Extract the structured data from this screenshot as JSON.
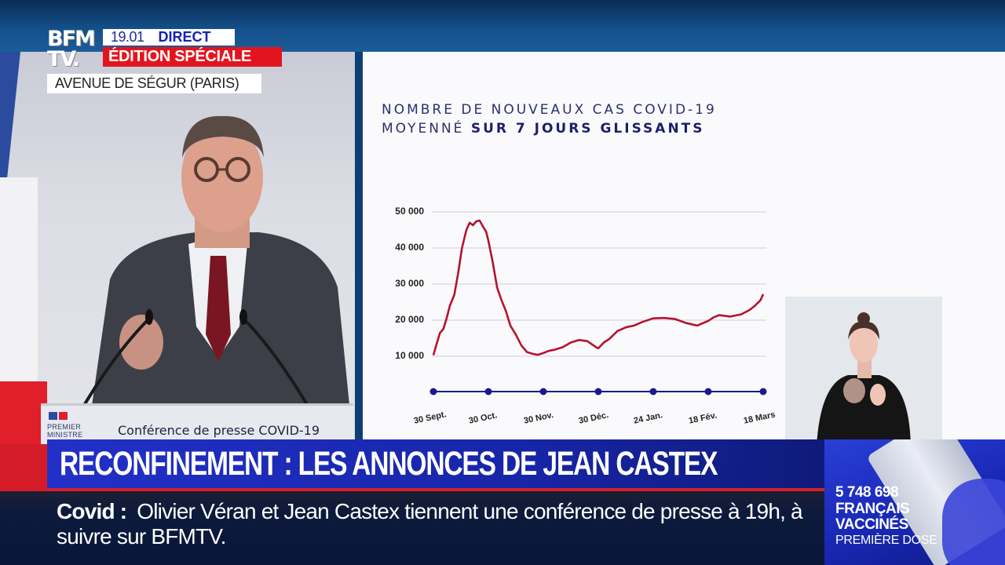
{
  "broadcast": {
    "channel_logo": [
      "BFM",
      "TV."
    ],
    "time": "19.01",
    "live_label": "DIRECT",
    "edition": "ÉDITION SPÉCIALE",
    "location": "AVENUE DE SÉGUR (PARIS)"
  },
  "podium": {
    "gov_label_line1": "PREMIER",
    "gov_label_line2": "MINISTRE",
    "title": "Conférence de presse COVID-19"
  },
  "chart": {
    "title_line1": "NOMBRE DE NOUVEAUX CAS COVID-19",
    "title_line2_plain": "MOYENNÉ ",
    "title_line2_bold": "SUR 7 JOURS GLISSANTS"
  },
  "chart_data": {
    "type": "line",
    "title": "Nombre de nouveaux cas COVID-19 moyenné sur 7 jours glissants",
    "xlabel": "",
    "ylabel": "",
    "ylim": [
      10000,
      50000
    ],
    "yticks": [
      "10 000",
      "20 000",
      "30 000",
      "40 000",
      "50 000"
    ],
    "ytick_values": [
      10000,
      20000,
      30000,
      40000,
      50000
    ],
    "grid": true,
    "categories": [
      "30 Sept.",
      "30 Oct.",
      "30 Nov.",
      "30 Déc.",
      "24 Jan.",
      "18 Fév.",
      "18 Mars"
    ],
    "series": [
      {
        "name": "Nouveaux cas (moyenne 7 jours)",
        "color": "#b5122f",
        "x": [
          0,
          0.06,
          0.12,
          0.18,
          0.24,
          0.3,
          0.38,
          0.45,
          0.52,
          0.6,
          0.66,
          0.72,
          0.78,
          0.84,
          0.9,
          0.96,
          1.0,
          1.08,
          1.16,
          1.24,
          1.32,
          1.4,
          1.5,
          1.6,
          1.7,
          1.8,
          1.9,
          2.0,
          2.1,
          2.2,
          2.35,
          2.5,
          2.65,
          2.8,
          2.95,
          3.0,
          3.1,
          3.2,
          3.35,
          3.5,
          3.65,
          3.8,
          4.0,
          4.2,
          4.4,
          4.6,
          4.8,
          5.0,
          5.1,
          5.2,
          5.4,
          5.6,
          5.75,
          5.85,
          5.95,
          6.0
        ],
        "values": [
          10300,
          13500,
          16500,
          17500,
          20500,
          24000,
          27000,
          33000,
          40000,
          45000,
          47000,
          46300,
          47400,
          47600,
          46000,
          44500,
          42000,
          36000,
          29000,
          25500,
          22500,
          18500,
          16000,
          13000,
          11200,
          10700,
          10400,
          10900,
          11500,
          11800,
          12500,
          13800,
          14500,
          14200,
          12600,
          12200,
          13800,
          14800,
          17000,
          18000,
          18500,
          19500,
          20500,
          20600,
          20300,
          19200,
          18500,
          19800,
          20800,
          21400,
          21000,
          21600,
          22800,
          24000,
          25500,
          27200
        ]
      }
    ]
  },
  "sign_language": {
    "description": "Interprète en langue des signes"
  },
  "headline": {
    "text": "RECONFINEMENT : LES ANNONCES DE JEAN CASTEX"
  },
  "ticker": {
    "topic": "Covid :",
    "text": "Olivier Véran et Jean Castex tiennent une conférence de presse à 19h, à suivre sur BFMTV."
  },
  "vaccine_widget": {
    "count": "5 748 698",
    "line1": "FRANÇAIS",
    "line2": "VACCINÉS",
    "line3": "PREMIÈRE DOSE"
  },
  "colors": {
    "bfm_red": "#e2151f",
    "direct_blue": "#1423b5",
    "headline_blue": "#1f2cc0",
    "chart_line": "#b5122f",
    "chart_axis": "#1c1a8a",
    "chart_title": "#2b2f6e"
  }
}
